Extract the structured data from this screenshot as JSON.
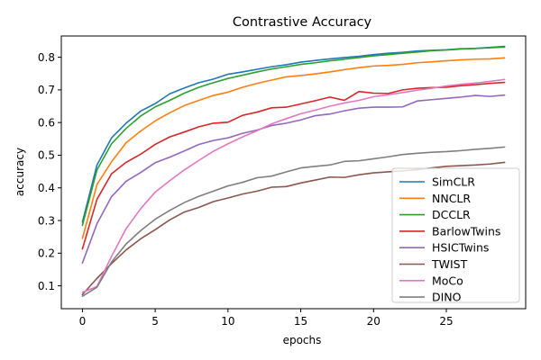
{
  "chart_data": {
    "type": "line",
    "title": "Contrastive Accuracy",
    "xlabel": "epochs",
    "ylabel": "accuracy",
    "xlim": [
      -1.45,
      30.45
    ],
    "ylim": [
      0.03,
      0.865
    ],
    "xticks": [
      0,
      5,
      10,
      15,
      20,
      25
    ],
    "yticks": [
      0.1,
      0.2,
      0.3,
      0.4,
      0.5,
      0.6,
      0.7,
      0.8
    ],
    "grid": false,
    "legend_position": "center-right",
    "x": [
      0,
      1,
      2,
      3,
      4,
      5,
      6,
      7,
      8,
      9,
      10,
      11,
      12,
      13,
      14,
      15,
      16,
      17,
      18,
      19,
      20,
      21,
      22,
      23,
      24,
      25,
      26,
      27,
      28,
      29
    ],
    "series": [
      {
        "name": "SimCLR",
        "color": "#1f77b4",
        "values": [
          0.295,
          0.47,
          0.553,
          0.598,
          0.635,
          0.658,
          0.688,
          0.706,
          0.722,
          0.733,
          0.748,
          0.755,
          0.763,
          0.771,
          0.777,
          0.785,
          0.79,
          0.795,
          0.799,
          0.803,
          0.808,
          0.812,
          0.815,
          0.819,
          0.821,
          0.823,
          0.826,
          0.827,
          0.83,
          0.833
        ]
      },
      {
        "name": "NNCLR",
        "color": "#ff7f0e",
        "values": [
          0.245,
          0.41,
          0.48,
          0.538,
          0.574,
          0.605,
          0.63,
          0.652,
          0.668,
          0.683,
          0.693,
          0.708,
          0.72,
          0.73,
          0.74,
          0.744,
          0.749,
          0.755,
          0.762,
          0.768,
          0.773,
          0.775,
          0.778,
          0.783,
          0.786,
          0.789,
          0.792,
          0.794,
          0.795,
          0.798
        ]
      },
      {
        "name": "DCCLR",
        "color": "#2ca02c",
        "values": [
          0.285,
          0.455,
          0.535,
          0.582,
          0.62,
          0.648,
          0.668,
          0.69,
          0.708,
          0.722,
          0.735,
          0.745,
          0.755,
          0.764,
          0.771,
          0.778,
          0.783,
          0.789,
          0.794,
          0.799,
          0.804,
          0.808,
          0.812,
          0.816,
          0.82,
          0.822,
          0.825,
          0.827,
          0.829,
          0.831
        ]
      },
      {
        "name": "BarlowTwins",
        "color": "#d62728",
        "values": [
          0.213,
          0.365,
          0.443,
          0.478,
          0.503,
          0.533,
          0.556,
          0.571,
          0.587,
          0.598,
          0.601,
          0.622,
          0.632,
          0.645,
          0.647,
          0.657,
          0.667,
          0.678,
          0.668,
          0.695,
          0.69,
          0.689,
          0.7,
          0.705,
          0.707,
          0.708,
          0.713,
          0.716,
          0.72,
          0.723
        ]
      },
      {
        "name": "HSICTwins",
        "color": "#9467bd",
        "values": [
          0.17,
          0.29,
          0.373,
          0.42,
          0.447,
          0.477,
          0.494,
          0.513,
          0.533,
          0.545,
          0.553,
          0.567,
          0.577,
          0.591,
          0.598,
          0.608,
          0.621,
          0.626,
          0.636,
          0.644,
          0.647,
          0.647,
          0.648,
          0.666,
          0.67,
          0.674,
          0.678,
          0.683,
          0.68,
          0.684
        ]
      },
      {
        "name": "TWIST",
        "color": "#8c564b",
        "values": [
          0.073,
          0.123,
          0.168,
          0.21,
          0.244,
          0.272,
          0.302,
          0.326,
          0.34,
          0.358,
          0.369,
          0.381,
          0.39,
          0.402,
          0.404,
          0.415,
          0.424,
          0.433,
          0.432,
          0.44,
          0.446,
          0.449,
          0.452,
          0.456,
          0.461,
          0.466,
          0.468,
          0.47,
          0.473,
          0.478
        ]
      },
      {
        "name": "MoCo",
        "color": "#e377c2",
        "values": [
          0.08,
          0.098,
          0.19,
          0.275,
          0.336,
          0.387,
          0.422,
          0.455,
          0.484,
          0.512,
          0.535,
          0.556,
          0.575,
          0.596,
          0.612,
          0.627,
          0.638,
          0.65,
          0.66,
          0.668,
          0.679,
          0.685,
          0.692,
          0.699,
          0.705,
          0.712,
          0.717,
          0.721,
          0.726,
          0.732
        ]
      },
      {
        "name": "DINO",
        "color": "#7f7f7f",
        "values": [
          0.068,
          0.096,
          0.173,
          0.228,
          0.269,
          0.304,
          0.331,
          0.355,
          0.374,
          0.39,
          0.406,
          0.417,
          0.431,
          0.436,
          0.449,
          0.461,
          0.466,
          0.47,
          0.481,
          0.483,
          0.489,
          0.495,
          0.502,
          0.506,
          0.509,
          0.511,
          0.514,
          0.518,
          0.521,
          0.525
        ]
      }
    ]
  }
}
